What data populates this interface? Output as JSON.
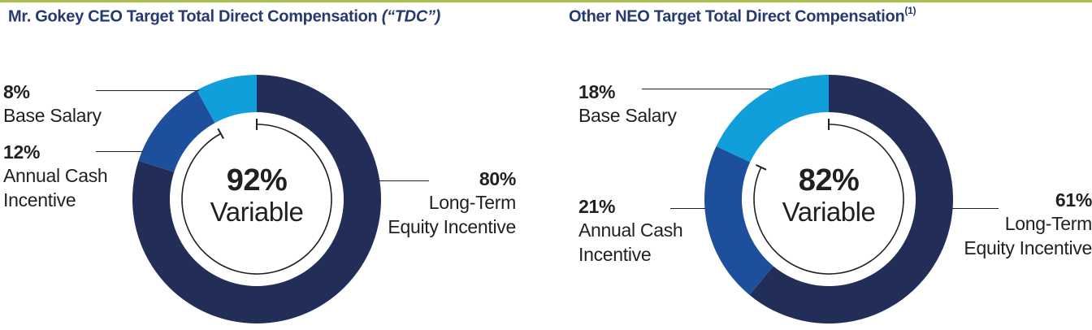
{
  "colors": {
    "top_bar": "#a9bf4a",
    "title_navy": "#263a6e",
    "text": "#231f20",
    "navy": "#222d58",
    "medium_blue": "#1e4f9c",
    "light_blue": "#109fda"
  },
  "charts": [
    {
      "title_main": "Mr. Gokey CEO Target Total Direct Compensation ",
      "title_emphasis": "(“TDC”)",
      "title_superscript": "",
      "center_value": "92%",
      "center_label": "Variable",
      "callouts": [
        {
          "pct": "8%",
          "lines": [
            "Base Salary"
          ]
        },
        {
          "pct": "12%",
          "lines": [
            "Annual Cash",
            "Incentive"
          ]
        },
        {
          "pct": "80%",
          "lines": [
            "Long-Term",
            "Equity Incentive"
          ]
        }
      ]
    },
    {
      "title_main": "Other NEO Target Total Direct Compensation",
      "title_emphasis": "",
      "title_superscript": "(1)",
      "center_value": "82%",
      "center_label": "Variable",
      "callouts": [
        {
          "pct": "18%",
          "lines": [
            "Base Salary"
          ]
        },
        {
          "pct": "21%",
          "lines": [
            "Annual Cash",
            "Incentive"
          ]
        },
        {
          "pct": "61%",
          "lines": [
            "Long-Term",
            "Equity Incentive"
          ]
        }
      ]
    }
  ],
  "chart_data": [
    {
      "type": "pie",
      "subtype": "donut",
      "title": "Mr. Gokey CEO Target Total Direct Compensation (“TDC”)",
      "start_angle_deg": 0,
      "direction": "clockwise",
      "segments": [
        {
          "label": "Long-Term Equity Incentive",
          "value": 80,
          "color": "#222d58"
        },
        {
          "label": "Annual Cash Incentive",
          "value": 12,
          "color": "#1e4f9c"
        },
        {
          "label": "Base Salary",
          "value": 8,
          "color": "#109fda"
        }
      ],
      "center_annotation": {
        "value": 92,
        "text": "92% Variable",
        "arc_covers_pct": 92
      }
    },
    {
      "type": "pie",
      "subtype": "donut",
      "title": "Other NEO Target Total Direct Compensation (1)",
      "start_angle_deg": 0,
      "direction": "clockwise",
      "segments": [
        {
          "label": "Long-Term Equity Incentive",
          "value": 61,
          "color": "#222d58"
        },
        {
          "label": "Annual Cash Incentive",
          "value": 21,
          "color": "#1e4f9c"
        },
        {
          "label": "Base Salary",
          "value": 18,
          "color": "#109fda"
        }
      ],
      "center_annotation": {
        "value": 82,
        "text": "82% Variable",
        "arc_covers_pct": 82
      }
    }
  ]
}
